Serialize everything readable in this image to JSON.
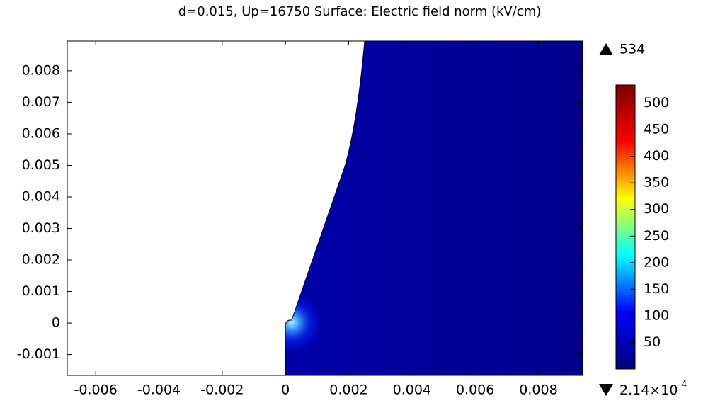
{
  "chart_data": {
    "type": "surface",
    "title": "d=0.015, Up=16750   Surface: Electric field norm (kV/cm)",
    "xlim": [
      -0.0069,
      0.0094
    ],
    "ylim": [
      -0.00166,
      0.00894
    ],
    "xticks": [
      -0.006,
      -0.004,
      -0.002,
      0,
      0.002,
      0.004,
      0.006,
      0.008
    ],
    "yticks": [
      -0.001,
      0,
      0.001,
      0.002,
      0.003,
      0.004,
      0.005,
      0.006,
      0.007,
      0.008
    ],
    "colorbar": {
      "lim": [
        0.000214,
        534
      ],
      "ticks": [
        50,
        100,
        150,
        200,
        250,
        300,
        350,
        400,
        450,
        500
      ],
      "max": 534,
      "min": {
        "value": 0.000214,
        "label": "2.14×10",
        "exponent": "-4"
      },
      "colormap": [
        "#00007f",
        "#0000ff",
        "#00ffff",
        "#ffff00",
        "#ff0000",
        "#7f0000"
      ]
    }
  }
}
